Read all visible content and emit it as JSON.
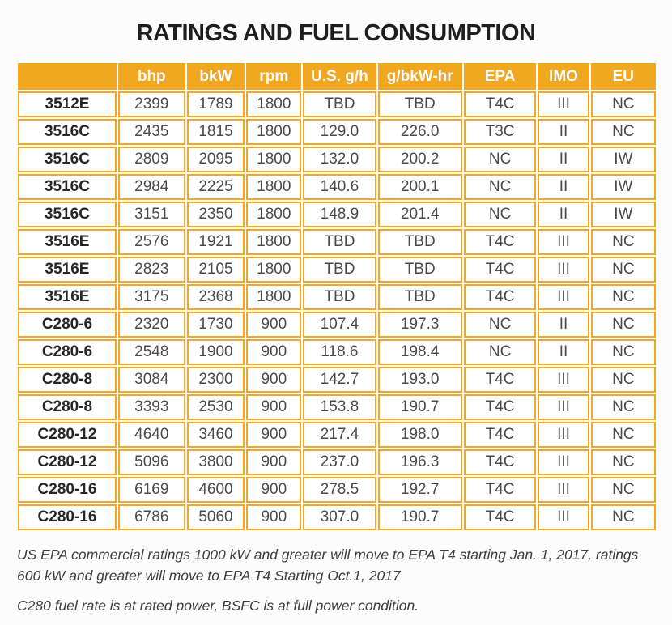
{
  "chart_data": {
    "type": "table",
    "title": "RATINGS AND FUEL CONSUMPTION",
    "columns": [
      "",
      "bhp",
      "bkW",
      "rpm",
      "U.S. g/h",
      "g/bkW-hr",
      "EPA",
      "IMO",
      "EU"
    ],
    "rows": [
      [
        "3512E",
        "2399",
        "1789",
        "1800",
        "TBD",
        "TBD",
        "T4C",
        "III",
        "NC"
      ],
      [
        "3516C",
        "2435",
        "1815",
        "1800",
        "129.0",
        "226.0",
        "T3C",
        "II",
        "NC"
      ],
      [
        "3516C",
        "2809",
        "2095",
        "1800",
        "132.0",
        "200.2",
        "NC",
        "II",
        "IW"
      ],
      [
        "3516C",
        "2984",
        "2225",
        "1800",
        "140.6",
        "200.1",
        "NC",
        "II",
        "IW"
      ],
      [
        "3516C",
        "3151",
        "2350",
        "1800",
        "148.9",
        "201.4",
        "NC",
        "II",
        "IW"
      ],
      [
        "3516E",
        "2576",
        "1921",
        "1800",
        "TBD",
        "TBD",
        "T4C",
        "III",
        "NC"
      ],
      [
        "3516E",
        "2823",
        "2105",
        "1800",
        "TBD",
        "TBD",
        "T4C",
        "III",
        "NC"
      ],
      [
        "3516E",
        "3175",
        "2368",
        "1800",
        "TBD",
        "TBD",
        "T4C",
        "III",
        "NC"
      ],
      [
        "C280-6",
        "2320",
        "1730",
        "900",
        "107.4",
        "197.3",
        "NC",
        "II",
        "NC"
      ],
      [
        "C280-6",
        "2548",
        "1900",
        "900",
        "118.6",
        "198.4",
        "NC",
        "II",
        "NC"
      ],
      [
        "C280-8",
        "3084",
        "2300",
        "900",
        "142.7",
        "193.0",
        "T4C",
        "III",
        "NC"
      ],
      [
        "C280-8",
        "3393",
        "2530",
        "900",
        "153.8",
        "190.7",
        "T4C",
        "III",
        "NC"
      ],
      [
        "C280-12",
        "4640",
        "3460",
        "900",
        "217.4",
        "198.0",
        "T4C",
        "III",
        "NC"
      ],
      [
        "C280-12",
        "5096",
        "3800",
        "900",
        "237.0",
        "196.3",
        "T4C",
        "III",
        "NC"
      ],
      [
        "C280-16",
        "6169",
        "4600",
        "900",
        "278.5",
        "192.7",
        "T4C",
        "III",
        "NC"
      ],
      [
        "C280-16",
        "6786",
        "5060",
        "900",
        "307.0",
        "190.7",
        "T4C",
        "III",
        "NC"
      ]
    ]
  },
  "footnotes": {
    "epa_note_line1": "US EPA commercial ratings 1000 kW and greater will move to EPA T4 starting Jan. 1, 2017, ratings",
    "epa_note_line2": "600 kW and greater will move to EPA T4 Starting Oct.1, 2017",
    "c280_note": "C280 fuel rate is at rated power, BSFC is at full power condition."
  },
  "colors": {
    "accent_orange": "#F2A720",
    "header_text": "#FFFFFF",
    "data_text": "#4A4A4A",
    "model_text": "#262626",
    "title_text": "#1E1E1E",
    "page_background": "#FCFCFC"
  }
}
